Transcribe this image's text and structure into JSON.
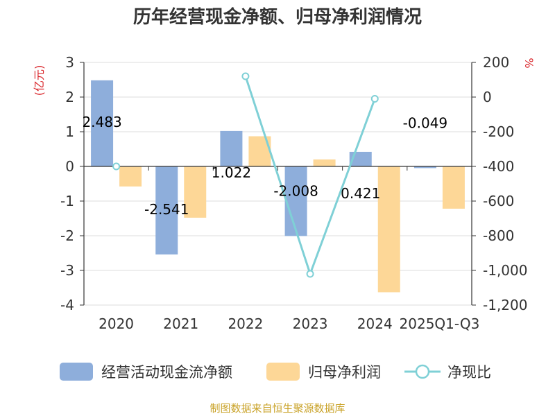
{
  "title": "历年经营现金净额、归母净利润情况",
  "source": "制图数据来自恒生聚源数据库",
  "chart_data": {
    "type": "bar",
    "categories": [
      "2020",
      "2021",
      "2022",
      "2023",
      "2024",
      "2025Q1-Q3"
    ],
    "left_axis": {
      "unit": "(亿元)",
      "min": -4,
      "max": 3,
      "ticks": [
        3,
        2,
        1,
        0,
        -1,
        -2,
        -3,
        -4
      ]
    },
    "right_axis": {
      "unit": "%",
      "min": -1200,
      "max": 200,
      "ticks": [
        "200",
        "0",
        "-200",
        "-400",
        "-600",
        "-800",
        "-1,000",
        "-1,200"
      ],
      "tick_values": [
        200,
        0,
        -200,
        -400,
        -600,
        -800,
        -1000,
        -1200
      ]
    },
    "series": [
      {
        "name": "经营活动现金流净额",
        "type": "bar",
        "axis": "left",
        "color": "#8eaedb",
        "values": [
          2.483,
          -2.541,
          1.022,
          -2.008,
          0.421,
          -0.049
        ],
        "labels": [
          "2.483",
          "-2.541",
          "1.022",
          "-2.008",
          "0.421",
          "-0.049"
        ]
      },
      {
        "name": "归母净利润",
        "type": "bar",
        "axis": "left",
        "color": "#fdd797",
        "values": [
          -0.58,
          -1.48,
          0.87,
          0.2,
          -3.63,
          -1.22
        ]
      },
      {
        "name": "净现比",
        "type": "line",
        "axis": "right",
        "color": "#7fd0d6",
        "values": [
          -400,
          null,
          120,
          -1020,
          -10,
          null
        ]
      }
    ]
  }
}
